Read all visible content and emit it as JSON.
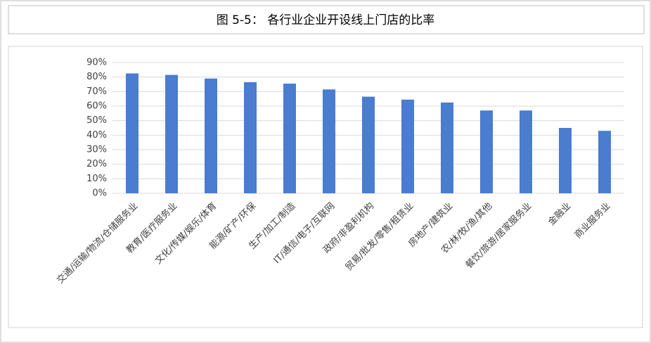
{
  "chart_data": {
    "type": "bar",
    "title": "图 5-5： 各行业企业开设线上门店的比率",
    "categories": [
      "交通/运输/物流/仓储服务业",
      "教育/医疗服务业",
      "文化/传媒/娱乐/体育",
      "能源/矿产/环保",
      "生产/加工/制造",
      "IT/通信/电子/互联网",
      "政府/非盈利机构",
      "贸易/批发/零售/租赁业",
      "房地产/建筑业",
      "农/林/牧/渔/其他",
      "餐饮/旅游/居家服务业",
      "金融业",
      "商业服务业"
    ],
    "values": [
      82.5,
      81.5,
      79,
      76.5,
      75.5,
      71.5,
      66.5,
      64.5,
      62.5,
      57,
      57,
      45,
      43
    ],
    "color": "#4a7ccf",
    "ylim": [
      0,
      90
    ],
    "yticks": [
      {
        "value": 0,
        "label": "0%"
      },
      {
        "value": 10,
        "label": "10%"
      },
      {
        "value": 20,
        "label": "20%"
      },
      {
        "value": 30,
        "label": "30%"
      },
      {
        "value": 40,
        "label": "40%"
      },
      {
        "value": 50,
        "label": "50%"
      },
      {
        "value": 60,
        "label": "60%"
      },
      {
        "value": 70,
        "label": "70%"
      },
      {
        "value": 80,
        "label": "80%"
      },
      {
        "value": 90,
        "label": "90%"
      }
    ],
    "grid": true
  }
}
